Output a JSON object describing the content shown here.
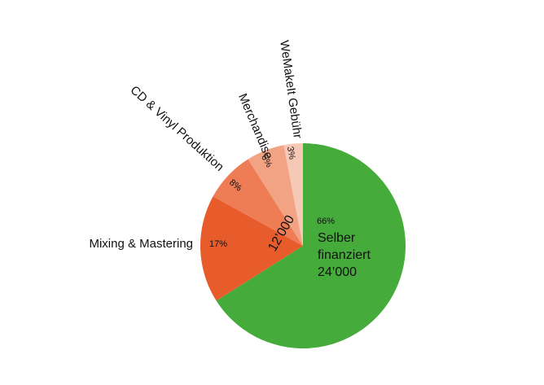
{
  "chart_data": {
    "type": "pie",
    "categories": [
      "Selber finanziert",
      "Mixing & Mastering",
      "CD & Vinyl Produktion",
      "Merchandise",
      "WeMakeIt Gebühr"
    ],
    "values": [
      66,
      17,
      8,
      6,
      3
    ],
    "value_labels": [
      "66%",
      "17%",
      "8%",
      "6%",
      "3%"
    ],
    "colors": [
      "#45ab3b",
      "#e85b2b",
      "#ee7c54",
      "#f2a384",
      "#f6c8b6"
    ],
    "annotations": [
      "24’000",
      "12’000"
    ]
  }
}
